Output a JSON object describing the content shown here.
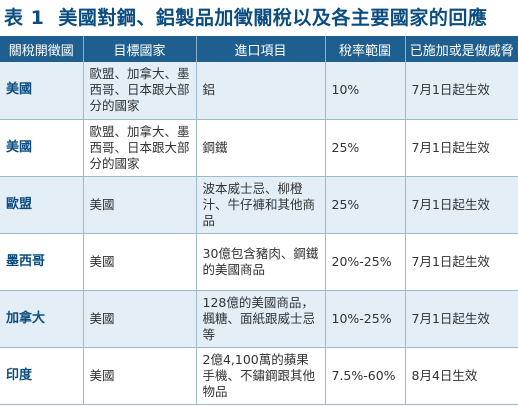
{
  "title": {
    "number": "表 1",
    "text": "美國對鋼、鋁製品加徵關稅以及各主要國家的回應"
  },
  "table": {
    "headers": [
      "關稅開徵國",
      "目標國家",
      "進口項目",
      "稅率範圍",
      "已施加或是做威脅"
    ],
    "rows": [
      {
        "country": "美國",
        "target": "歐盟、加拿大、墨西哥、日本跟大部分的國家",
        "items": "鋁",
        "rate": "10%",
        "status": "7月1日起生效"
      },
      {
        "country": "美國",
        "target": "歐盟、加拿大、墨西哥、日本跟大部分的國家",
        "items": "鋼鐵",
        "rate": "25%",
        "status": "7月1日起生效"
      },
      {
        "country": "歐盟",
        "target": "美國",
        "items": "波本威士忌、柳橙汁、牛仔褲和其他商品",
        "rate": "25%",
        "status": "7月1日起生效"
      },
      {
        "country": "墨西哥",
        "target": "美國",
        "items": "30億包含豬肉、鋼鐵的美國商品",
        "rate": "20%-25%",
        "status": "7月1日起生效"
      },
      {
        "country": "加拿大",
        "target": "美國",
        "items": "128億的美國商品，楓糖、面紙跟威士忌等",
        "rate": "10%-25%",
        "status": "7月1日起生效"
      },
      {
        "country": "印度",
        "target": "美國",
        "items": "2億4,100萬的蘋果手機、不鏽鋼跟其他物品",
        "rate": "7.5%-60%",
        "status": "8月4日生效"
      }
    ]
  }
}
